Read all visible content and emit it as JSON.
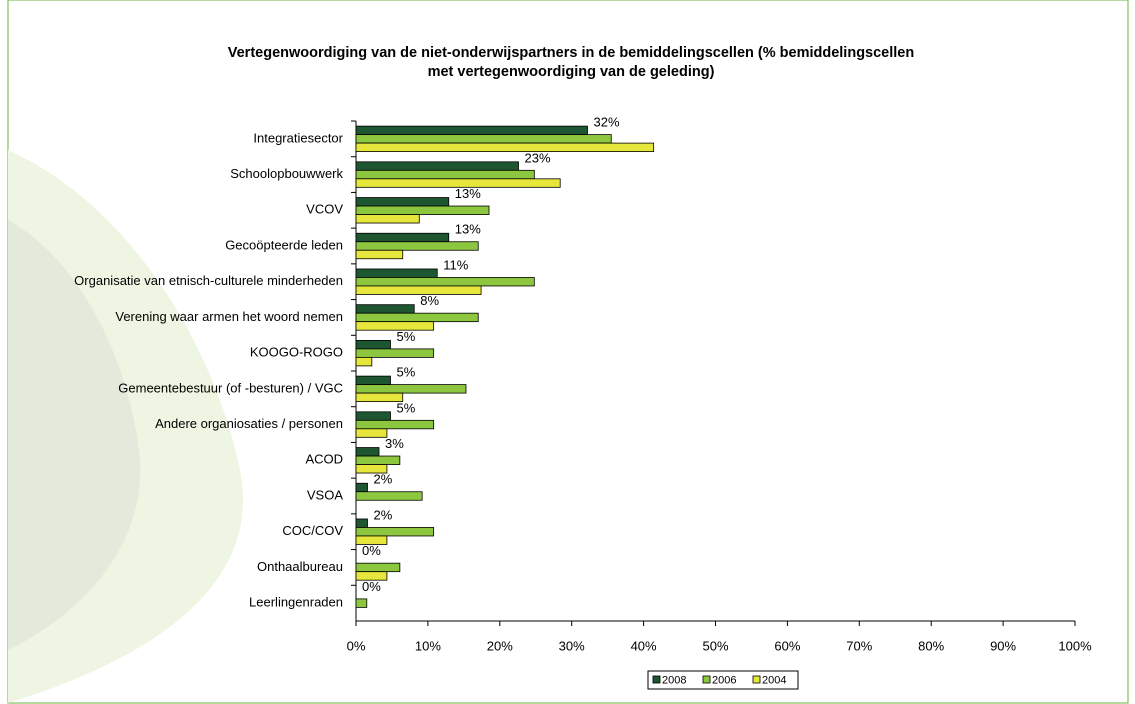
{
  "chart_data": {
    "type": "hbar",
    "title": "Vertegenwoordiging van de niet-onderwijspartners in de bemiddelingscellen (% bemiddelingscellen met vertegenwoordiging van de geleding)",
    "categories": [
      "Integratiesector",
      "Schoolopbouwwerk",
      "VCOV",
      "Gecoöpteerde leden",
      "Organisatie van etnisch-culturele minderheden",
      "Verening waar armen het woord nemen",
      "KOOGO-ROGO",
      "Gemeentebestuur  (of -besturen) / VGC",
      "Andere organiosaties / personen",
      "ACOD",
      "VSOA",
      "COC/COV",
      "Onthaalbureau",
      "Leerlingenraden"
    ],
    "series": [
      {
        "name": "2008",
        "color": "#1e5631",
        "values": [
          32.2,
          22.6,
          12.9,
          12.9,
          11.3,
          8.1,
          4.8,
          4.8,
          4.8,
          3.2,
          1.6,
          1.6,
          0,
          0
        ],
        "value_labels": [
          "32%",
          "23%",
          "13%",
          "13%",
          "11%",
          "8%",
          "5%",
          "5%",
          "5%",
          "3%",
          "2%",
          "2%",
          "0%",
          "0%"
        ]
      },
      {
        "name": "2006",
        "color": "#8dc63f",
        "values": [
          35.5,
          24.8,
          18.5,
          17.0,
          24.8,
          17.0,
          10.8,
          15.3,
          10.8,
          6.1,
          9.2,
          10.8,
          6.1,
          1.5
        ]
      },
      {
        "name": "2004",
        "color": "#e6e63c",
        "values": [
          41.4,
          28.4,
          8.8,
          6.5,
          17.4,
          10.8,
          2.2,
          6.5,
          4.3,
          4.3,
          0,
          4.3,
          4.3,
          0
        ]
      }
    ],
    "xlim": [
      0,
      100
    ],
    "xticks": [
      {
        "value": 0,
        "label": "0%"
      },
      {
        "value": 10,
        "label": "10%"
      },
      {
        "value": 20,
        "label": "20%"
      },
      {
        "value": 30,
        "label": "30%"
      },
      {
        "value": 40,
        "label": "40%"
      },
      {
        "value": 50,
        "label": "50%"
      },
      {
        "value": 60,
        "label": "60%"
      },
      {
        "value": 70,
        "label": "70%"
      },
      {
        "value": 80,
        "label": "80%"
      },
      {
        "value": 90,
        "label": "90%"
      },
      {
        "value": 100,
        "label": "100%"
      }
    ]
  }
}
